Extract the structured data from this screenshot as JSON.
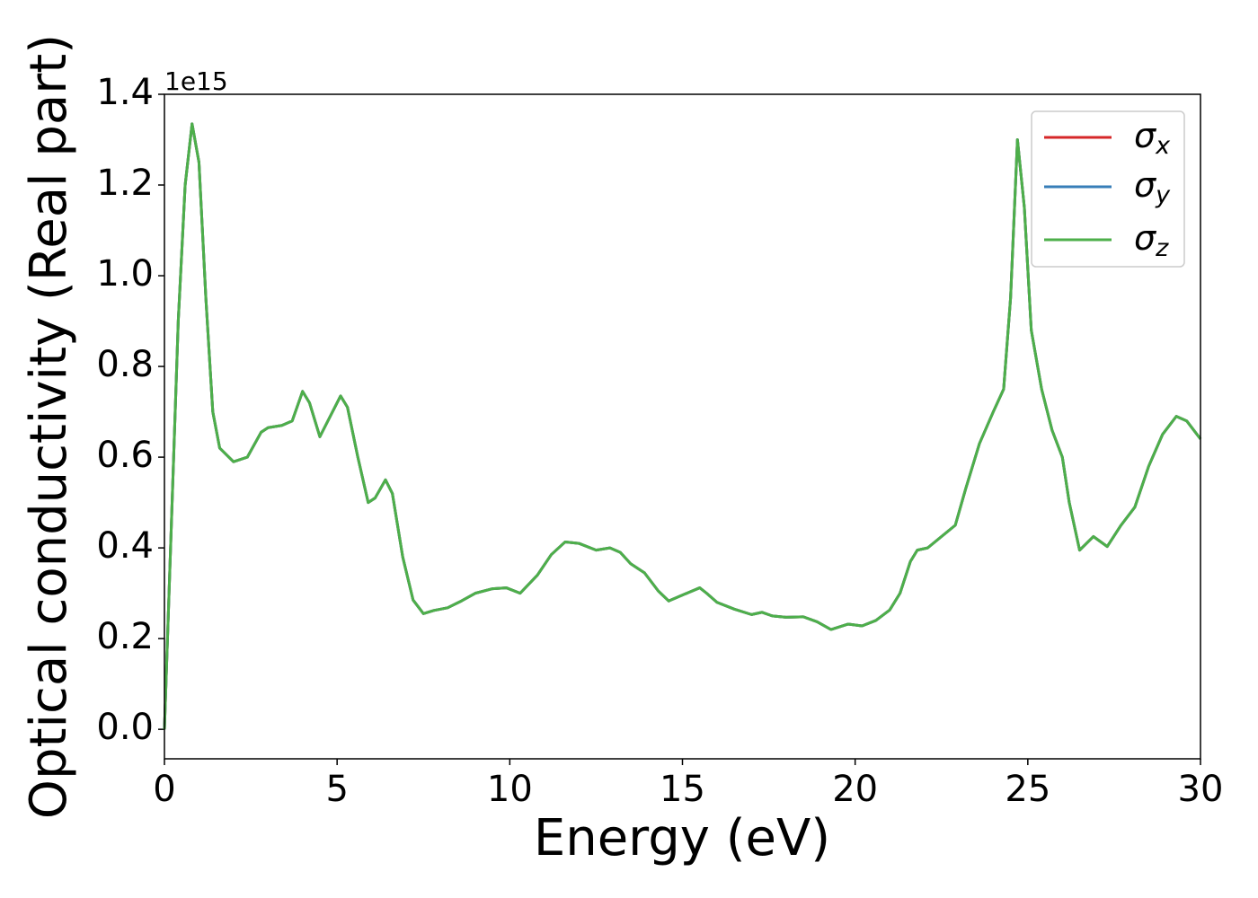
{
  "chart_data": {
    "type": "line",
    "xlabel": "Energy (eV)",
    "ylabel": "Optical conductivity (Real part)",
    "y_offset_text": "1e15",
    "xlim": [
      0,
      30
    ],
    "ylim": [
      -0.065,
      1.4
    ],
    "xticks": [
      0,
      5,
      10,
      15,
      20,
      25,
      30
    ],
    "yticks": [
      {
        "value": 0,
        "label": "0.0"
      },
      0.2,
      0.4,
      0.6,
      0.8,
      {
        "value": 1,
        "label": "1.0"
      },
      1.2,
      1.4
    ],
    "legend": "upper right",
    "x": [
      0,
      0.2,
      0.4,
      0.6,
      0.8,
      1.0,
      1.2,
      1.4,
      1.6,
      2.0,
      2.4,
      2.8,
      3.0,
      3.4,
      3.7,
      4.0,
      4.2,
      4.5,
      4.8,
      5.1,
      5.3,
      5.6,
      5.9,
      6.1,
      6.4,
      6.6,
      6.9,
      7.2,
      7.5,
      7.8,
      8.2,
      8.6,
      9.0,
      9.5,
      9.9,
      10.3,
      10.8,
      11.2,
      11.6,
      12.0,
      12.5,
      12.9,
      13.2,
      13.5,
      13.9,
      14.3,
      14.6,
      15.0,
      15.5,
      15.7,
      16.0,
      16.5,
      17.0,
      17.3,
      17.6,
      18.0,
      18.5,
      18.9,
      19.3,
      19.8,
      20.2,
      20.6,
      21.0,
      21.3,
      21.6,
      21.8,
      22.1,
      22.5,
      22.9,
      23.2,
      23.6,
      24.0,
      24.3,
      24.5,
      24.7,
      24.9,
      25.1,
      25.4,
      25.7,
      26.0,
      26.2,
      26.5,
      26.9,
      27.3,
      27.7,
      28.1,
      28.5,
      28.9,
      29.3,
      29.6,
      30.0
    ],
    "series": [
      {
        "name": "σx",
        "color": "#d62728",
        "values": [
          0.0,
          0.45,
          0.9,
          1.2,
          1.335,
          1.25,
          0.95,
          0.7,
          0.62,
          0.59,
          0.6,
          0.655,
          0.665,
          0.67,
          0.68,
          0.745,
          0.72,
          0.645,
          0.69,
          0.735,
          0.71,
          0.6,
          0.5,
          0.51,
          0.55,
          0.52,
          0.38,
          0.285,
          0.255,
          0.262,
          0.268,
          0.283,
          0.3,
          0.31,
          0.312,
          0.3,
          0.34,
          0.385,
          0.413,
          0.41,
          0.395,
          0.4,
          0.39,
          0.365,
          0.345,
          0.305,
          0.283,
          0.296,
          0.312,
          0.3,
          0.28,
          0.265,
          0.253,
          0.258,
          0.25,
          0.247,
          0.248,
          0.237,
          0.22,
          0.232,
          0.228,
          0.24,
          0.263,
          0.3,
          0.37,
          0.395,
          0.4,
          0.425,
          0.45,
          0.53,
          0.63,
          0.7,
          0.75,
          0.95,
          1.3,
          1.15,
          0.88,
          0.75,
          0.66,
          0.6,
          0.5,
          0.395,
          0.425,
          0.403,
          0.45,
          0.49,
          0.58,
          0.65,
          0.69,
          0.68,
          0.64
        ]
      },
      {
        "name": "σy",
        "color": "#377eb8",
        "values": [
          0.0,
          0.45,
          0.9,
          1.2,
          1.335,
          1.25,
          0.95,
          0.7,
          0.62,
          0.59,
          0.6,
          0.655,
          0.665,
          0.67,
          0.68,
          0.745,
          0.72,
          0.645,
          0.69,
          0.735,
          0.71,
          0.6,
          0.5,
          0.51,
          0.55,
          0.52,
          0.38,
          0.285,
          0.255,
          0.262,
          0.268,
          0.283,
          0.3,
          0.31,
          0.312,
          0.3,
          0.34,
          0.385,
          0.413,
          0.41,
          0.395,
          0.4,
          0.39,
          0.365,
          0.345,
          0.305,
          0.283,
          0.296,
          0.312,
          0.3,
          0.28,
          0.265,
          0.253,
          0.258,
          0.25,
          0.247,
          0.248,
          0.237,
          0.22,
          0.232,
          0.228,
          0.24,
          0.263,
          0.3,
          0.37,
          0.395,
          0.4,
          0.425,
          0.45,
          0.53,
          0.63,
          0.7,
          0.75,
          0.95,
          1.3,
          1.15,
          0.88,
          0.75,
          0.66,
          0.6,
          0.5,
          0.395,
          0.425,
          0.403,
          0.45,
          0.49,
          0.58,
          0.65,
          0.69,
          0.68,
          0.64
        ]
      },
      {
        "name": "σz",
        "color": "#4daf4a",
        "values": [
          0.0,
          0.45,
          0.9,
          1.2,
          1.335,
          1.25,
          0.95,
          0.7,
          0.62,
          0.59,
          0.6,
          0.655,
          0.665,
          0.67,
          0.68,
          0.745,
          0.72,
          0.645,
          0.69,
          0.735,
          0.71,
          0.6,
          0.5,
          0.51,
          0.55,
          0.52,
          0.38,
          0.285,
          0.255,
          0.262,
          0.268,
          0.283,
          0.3,
          0.31,
          0.312,
          0.3,
          0.34,
          0.385,
          0.413,
          0.41,
          0.395,
          0.4,
          0.39,
          0.365,
          0.345,
          0.305,
          0.283,
          0.296,
          0.312,
          0.3,
          0.28,
          0.265,
          0.253,
          0.258,
          0.25,
          0.247,
          0.248,
          0.237,
          0.22,
          0.232,
          0.228,
          0.24,
          0.263,
          0.3,
          0.37,
          0.395,
          0.4,
          0.425,
          0.45,
          0.53,
          0.63,
          0.7,
          0.75,
          0.95,
          1.3,
          1.15,
          0.88,
          0.75,
          0.66,
          0.6,
          0.5,
          0.395,
          0.425,
          0.403,
          0.45,
          0.49,
          0.58,
          0.65,
          0.69,
          0.68,
          0.64
        ]
      }
    ]
  }
}
